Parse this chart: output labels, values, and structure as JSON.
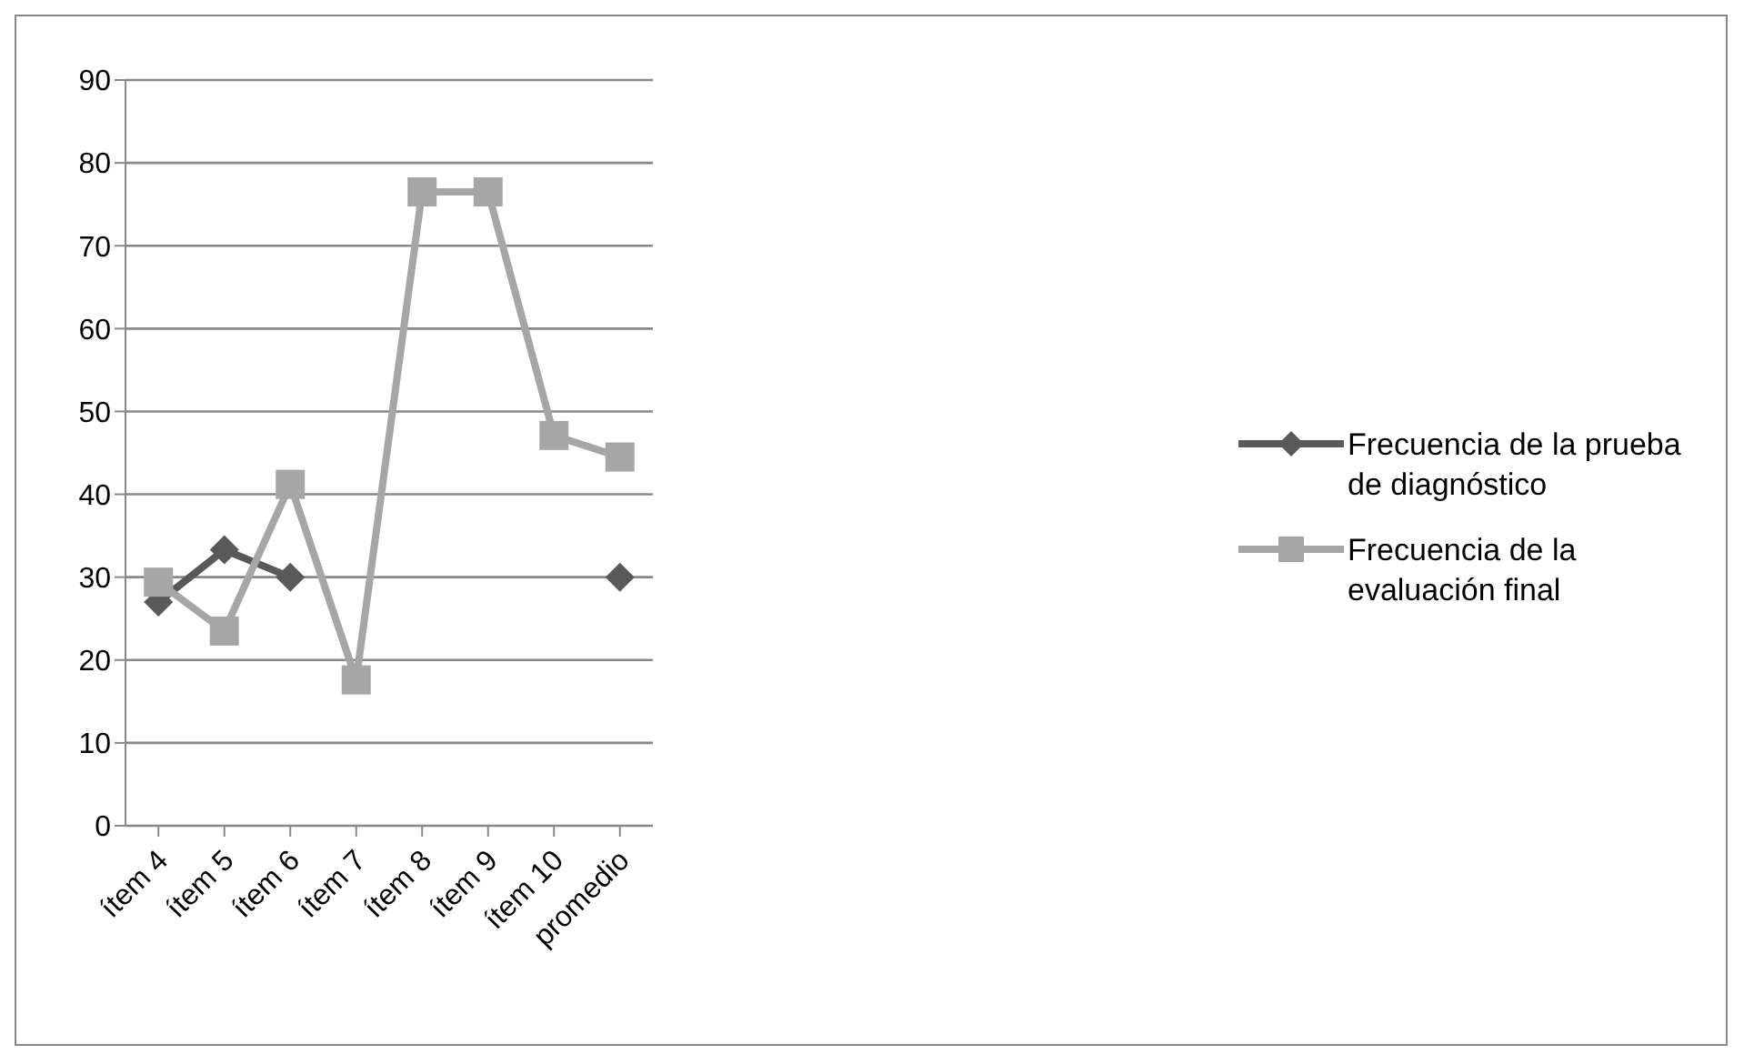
{
  "chart_data": {
    "type": "line",
    "categories": [
      "ítem 4",
      "ítem 5",
      "ítem 6",
      "ítem 7",
      "ítem 8",
      "ítem 9",
      "ítem 10",
      "promedio"
    ],
    "series": [
      {
        "name": "Frecuencia de la prueba de diagnóstico",
        "color": "#595959",
        "marker": "diamond",
        "values": [
          27,
          33.3,
          30,
          null,
          null,
          null,
          null,
          30
        ]
      },
      {
        "name": "Frecuencia de la evaluación final",
        "color": "#a6a6a6",
        "marker": "square",
        "values": [
          29.4,
          23.5,
          41.2,
          17.6,
          76.5,
          76.5,
          47.1,
          44.5
        ]
      }
    ],
    "ylim": [
      0,
      90
    ],
    "yticks": [
      0,
      10,
      20,
      30,
      40,
      50,
      60,
      70,
      80,
      90
    ],
    "grid": "y",
    "legend": "right"
  }
}
